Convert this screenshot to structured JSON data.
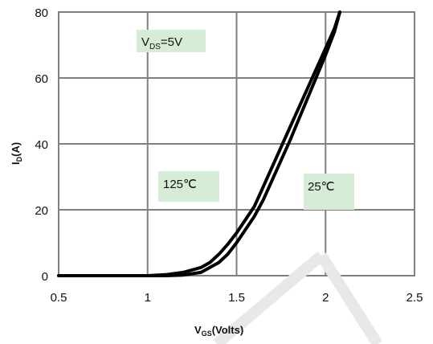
{
  "chart_data": {
    "type": "line",
    "xlim": [
      0.5,
      2.5
    ],
    "ylim": [
      0,
      80
    ],
    "x_ticks": [
      "0.5",
      "1",
      "1.5",
      "2",
      "2.5"
    ],
    "y_ticks": [
      "0",
      "20",
      "40",
      "60",
      "80"
    ],
    "grid": true,
    "xlabel": {
      "main": "V",
      "sub": "GS",
      "rest": "(Volts)"
    },
    "ylabel": {
      "main": "I",
      "sub": "D",
      "rest": "(A)"
    },
    "series": [
      {
        "name": "125℃",
        "x": [
          0.5,
          1.0,
          1.1,
          1.2,
          1.3,
          1.35,
          1.4,
          1.45,
          1.5,
          1.55,
          1.6,
          1.7,
          1.8,
          1.9,
          2.0,
          2.05,
          2.08
        ],
        "y": [
          0,
          0,
          0.3,
          1,
          2.5,
          4,
          6.5,
          9.5,
          13,
          17,
          21,
          33,
          45,
          57,
          69,
          75,
          80
        ]
      },
      {
        "name": "25℃",
        "x": [
          0.5,
          1.1,
          1.2,
          1.3,
          1.35,
          1.4,
          1.45,
          1.5,
          1.55,
          1.6,
          1.65,
          1.7,
          1.8,
          1.9,
          2.0,
          2.05,
          2.08
        ],
        "y": [
          0,
          0,
          0.2,
          1,
          2.5,
          4,
          6.5,
          10,
          14,
          18,
          23,
          29,
          41,
          54,
          67,
          74,
          80
        ]
      }
    ],
    "annotations": [
      {
        "main": "V",
        "sub": "DS",
        "rest": "=5V"
      },
      {
        "text": "125℃"
      },
      {
        "text": "25℃"
      }
    ],
    "annotation_fill": "#d6ecd6",
    "line_color": "#000000",
    "grid_color": "#808080"
  }
}
